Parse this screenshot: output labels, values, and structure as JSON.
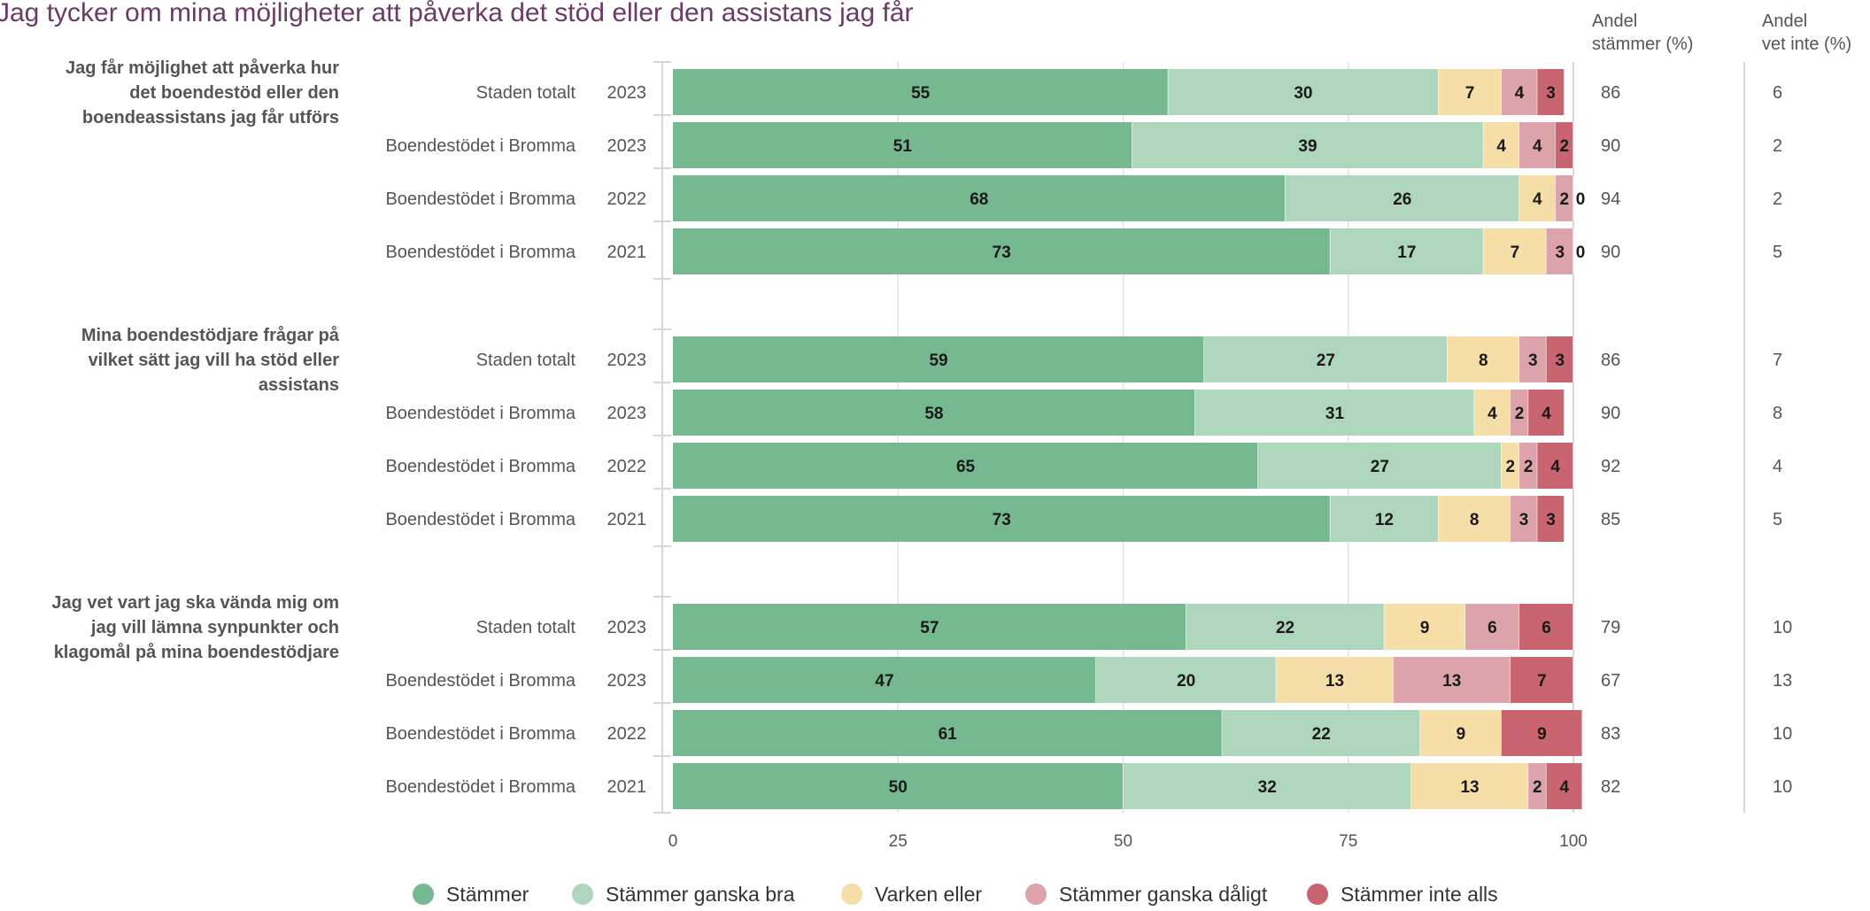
{
  "chart_data": {
    "type": "bar",
    "orientation": "horizontal",
    "stacked": true,
    "title": "Jag tycker om mina möjligheter att påverka det stöd eller den assistans jag får",
    "xlim": [
      0,
      100
    ],
    "x_ticks": [
      "0",
      "25",
      "50",
      "75",
      "100"
    ],
    "grid": true,
    "legend_position": "bottom",
    "series": [
      {
        "name": "Stämmer",
        "color": "#76b990"
      },
      {
        "name": "Stämmer ganska bra",
        "color": "#aed6bd"
      },
      {
        "name": "Varken eller",
        "color": "#f5dea8"
      },
      {
        "name": "Stämmer ganska dåligt",
        "color": "#dca3ab"
      },
      {
        "name": "Stämmer inte alls",
        "color": "#c96471"
      }
    ],
    "side_headers": [
      "Andel\nstämmer (%)",
      "Andel\nvet inte (%)"
    ],
    "groups": [
      {
        "question": "Jag får möjlighet att påverka hur det boendestöd eller den boendeassistans jag får utförs",
        "rows": [
          {
            "unit": "Staden totalt",
            "year": "2023",
            "values": [
              55,
              30,
              7,
              4,
              3
            ],
            "andel_stammer": "86",
            "andel_vet_inte": "6"
          },
          {
            "unit": "Boendestödet i Bromma",
            "year": "2023",
            "values": [
              51,
              39,
              4,
              4,
              2
            ],
            "andel_stammer": "90",
            "andel_vet_inte": "2"
          },
          {
            "unit": "Boendestödet i Bromma",
            "year": "2022",
            "values": [
              68,
              26,
              4,
              2,
              0
            ],
            "andel_stammer": "94",
            "andel_vet_inte": "2"
          },
          {
            "unit": "Boendestödet i Bromma",
            "year": "2021",
            "values": [
              73,
              17,
              7,
              3,
              0
            ],
            "andel_stammer": "90",
            "andel_vet_inte": "5"
          }
        ]
      },
      {
        "question": "Mina boendestödjare frågar på vilket sätt jag vill ha stöd eller assistans",
        "rows": [
          {
            "unit": "Staden totalt",
            "year": "2023",
            "values": [
              59,
              27,
              8,
              3,
              3
            ],
            "andel_stammer": "86",
            "andel_vet_inte": "7"
          },
          {
            "unit": "Boendestödet i Bromma",
            "year": "2023",
            "values": [
              58,
              31,
              4,
              2,
              4
            ],
            "andel_stammer": "90",
            "andel_vet_inte": "8"
          },
          {
            "unit": "Boendestödet i Bromma",
            "year": "2022",
            "values": [
              65,
              27,
              2,
              2,
              4
            ],
            "andel_stammer": "92",
            "andel_vet_inte": "4"
          },
          {
            "unit": "Boendestödet i Bromma",
            "year": "2021",
            "values": [
              73,
              12,
              8,
              3,
              3
            ],
            "andel_stammer": "85",
            "andel_vet_inte": "5"
          }
        ]
      },
      {
        "question": "Jag vet vart jag ska vända mig om jag vill lämna synpunkter och klagomål på mina boendestödjare",
        "rows": [
          {
            "unit": "Staden totalt",
            "year": "2023",
            "values": [
              57,
              22,
              9,
              6,
              6
            ],
            "andel_stammer": "79",
            "andel_vet_inte": "10"
          },
          {
            "unit": "Boendestödet i Bromma",
            "year": "2023",
            "values": [
              47,
              20,
              13,
              13,
              7
            ],
            "andel_stammer": "67",
            "andel_vet_inte": "13"
          },
          {
            "unit": "Boendestödet i Bromma",
            "year": "2022",
            "values": [
              61,
              22,
              9,
              0,
              9
            ],
            "andel_stammer": "83",
            "andel_vet_inte": "10"
          },
          {
            "unit": "Boendestödet i Bromma",
            "year": "2021",
            "values": [
              50,
              32,
              13,
              2,
              4
            ],
            "andel_stammer": "82",
            "andel_vet_inte": "10"
          }
        ]
      }
    ]
  }
}
